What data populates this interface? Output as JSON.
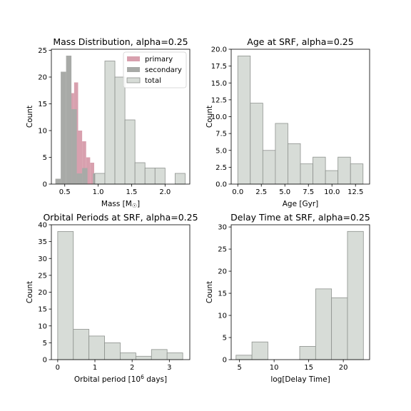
{
  "chart_data": [
    {
      "type": "bar",
      "title": "Mass Distribution, alpha=0.25",
      "xlabel": "Mass [M",
      "xlabel_symbol": "☉",
      "xlabel_suffix": "]",
      "ylabel": "Count",
      "xlim": [
        0.3,
        2.37
      ],
      "ylim": [
        0,
        25.2
      ],
      "xticks": [
        0.5,
        1.0,
        1.5,
        2.0
      ],
      "xtick_labels": [
        "0.5",
        "1.0",
        "1.5",
        "2.0"
      ],
      "yticks": [
        0,
        5,
        10,
        15,
        20,
        25
      ],
      "ytick_labels": [
        "0",
        "5",
        "10",
        "15",
        "20",
        "25"
      ],
      "legend": {
        "position": "top-right",
        "entries": [
          "primary",
          "secondary",
          "total"
        ]
      },
      "series": [
        {
          "name": "primary",
          "color": "#d8a0ae",
          "bins": [
            [
              0.58,
              0.64,
              17
            ],
            [
              0.64,
              0.7,
              19
            ],
            [
              0.7,
              0.76,
              10
            ],
            [
              0.76,
              0.82,
              8
            ],
            [
              0.82,
              0.88,
              5
            ],
            [
              0.88,
              0.94,
              4
            ]
          ]
        },
        {
          "name": "secondary",
          "color": "#a8aaa7",
          "bins": [
            [
              0.36,
              0.44,
              1
            ],
            [
              0.44,
              0.52,
              21
            ],
            [
              0.52,
              0.6,
              24
            ],
            [
              0.6,
              0.68,
              14
            ],
            [
              0.68,
              0.76,
              2
            ],
            [
              0.76,
              0.84,
              3
            ],
            [
              0.84,
              0.92,
              0
            ],
            [
              0.92,
              1.0,
              2
            ]
          ]
        },
        {
          "name": "total",
          "color": "#d7dcd7",
          "edge": "#8e928e",
          "bins": [
            [
              0.95,
              1.1,
              2
            ],
            [
              1.1,
              1.25,
              23
            ],
            [
              1.25,
              1.4,
              20
            ],
            [
              1.4,
              1.55,
              12
            ],
            [
              1.55,
              1.7,
              4
            ],
            [
              1.7,
              1.85,
              3
            ],
            [
              1.85,
              2.0,
              3
            ],
            [
              2.0,
              2.15,
              0
            ],
            [
              2.15,
              2.3,
              2
            ]
          ]
        }
      ]
    },
    {
      "type": "bar",
      "title": "Age at SRF, alpha=0.25",
      "xlabel": "Age [Gyr]",
      "ylabel": "Count",
      "xlim": [
        -0.7,
        14.0
      ],
      "ylim": [
        0,
        20.0
      ],
      "xticks": [
        0,
        2.5,
        5,
        7.5,
        10,
        12.5
      ],
      "xtick_labels": [
        "0.0",
        "2.5",
        "5.0",
        "7.5",
        "10.0",
        "12.5"
      ],
      "yticks": [
        0,
        2.5,
        5,
        7.5,
        10,
        12.5,
        15,
        17.5,
        20
      ],
      "ytick_labels": [
        "0.0",
        "2.5",
        "5.0",
        "7.5",
        "10.0",
        "12.5",
        "15.0",
        "17.5",
        "20.0"
      ],
      "series": [
        {
          "color": "#d7dcd7",
          "edge": "#8e928e",
          "bins": [
            [
              0.0,
              1.33,
              19
            ],
            [
              1.33,
              2.66,
              12
            ],
            [
              2.66,
              3.99,
              5
            ],
            [
              3.99,
              5.32,
              9
            ],
            [
              5.32,
              6.65,
              6
            ],
            [
              6.65,
              7.98,
              3
            ],
            [
              7.98,
              9.31,
              4
            ],
            [
              9.31,
              10.64,
              2
            ],
            [
              10.64,
              11.97,
              4
            ],
            [
              11.97,
              13.3,
              3
            ]
          ]
        }
      ]
    },
    {
      "type": "bar",
      "title": "Orbital Periods at SRF, alpha=0.25",
      "xlabel": "Orbital period [10",
      "xlabel_sup": "6",
      "xlabel_suffix": " days]",
      "ylabel": "Count",
      "xlim": [
        -0.17,
        3.55
      ],
      "ylim": [
        0,
        40.0
      ],
      "xticks": [
        0,
        1,
        2,
        3
      ],
      "xtick_labels": [
        "0",
        "1",
        "2",
        "3"
      ],
      "yticks": [
        0,
        5,
        10,
        15,
        20,
        25,
        30,
        35,
        40
      ],
      "ytick_labels": [
        "0",
        "5",
        "10",
        "15",
        "20",
        "25",
        "30",
        "35",
        "40"
      ],
      "series": [
        {
          "color": "#d7dcd7",
          "edge": "#8e928e",
          "bins": [
            [
              0.0,
              0.42,
              38
            ],
            [
              0.42,
              0.84,
              9
            ],
            [
              0.84,
              1.26,
              7
            ],
            [
              1.26,
              1.68,
              5
            ],
            [
              1.68,
              2.1,
              2
            ],
            [
              2.1,
              2.52,
              1
            ],
            [
              2.52,
              2.94,
              3
            ],
            [
              2.94,
              3.36,
              2
            ]
          ]
        }
      ]
    },
    {
      "type": "bar",
      "title": "Delay Time at SRF, alpha=0.25",
      "xlabel": "log[Delay Time]",
      "ylabel": "Count",
      "xlim": [
        3.8,
        23.8
      ],
      "ylim": [
        0,
        30.5
      ],
      "xticks": [
        5,
        10,
        15,
        20
      ],
      "xtick_labels": [
        "5",
        "10",
        "15",
        "20"
      ],
      "yticks": [
        0,
        5,
        10,
        15,
        20,
        25,
        30
      ],
      "ytick_labels": [
        "0",
        "5",
        "10",
        "15",
        "20",
        "25",
        "30"
      ],
      "series": [
        {
          "color": "#d7dcd7",
          "edge": "#8e928e",
          "bins": [
            [
              4.5,
              6.8,
              1
            ],
            [
              6.8,
              9.1,
              4
            ],
            [
              9.1,
              11.4,
              0
            ],
            [
              11.4,
              13.7,
              0
            ],
            [
              13.7,
              16.0,
              3
            ],
            [
              16.0,
              18.3,
              16
            ],
            [
              18.3,
              20.6,
              14
            ],
            [
              20.6,
              22.9,
              29
            ]
          ]
        }
      ]
    }
  ]
}
